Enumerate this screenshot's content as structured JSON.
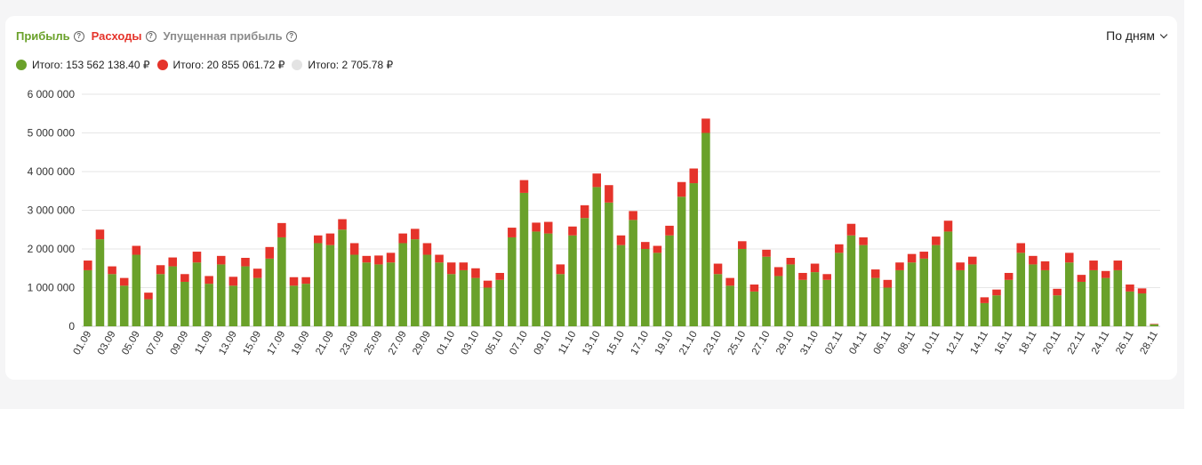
{
  "tabs": [
    {
      "label": "Прибыль",
      "color": "#6aa12a"
    },
    {
      "label": "Расходы",
      "color": "#e5332a"
    },
    {
      "label": "Упущенная прибыль",
      "color": "#8c8c8c"
    }
  ],
  "period_label": "По дням",
  "legend": [
    {
      "label": "Итого: 153 562 138.40 ₽",
      "color": "#6aa12a"
    },
    {
      "label": "Итого: 20 855 061.72 ₽",
      "color": "#e5332a"
    },
    {
      "label": "Итого: 2 705.78 ₽",
      "color": "#e3e3e3"
    }
  ],
  "chart_data": {
    "type": "bar",
    "stacked": true,
    "ylim": [
      0,
      6000000
    ],
    "yticks": [
      0,
      1000000,
      2000000,
      3000000,
      4000000,
      5000000,
      6000000
    ],
    "ytick_labels": [
      "0",
      "1 000 000",
      "2 000 000",
      "3 000 000",
      "4 000 000",
      "5 000 000",
      "6 000 000"
    ],
    "categories": [
      "01.09",
      "02.09",
      "03.09",
      "04.09",
      "05.09",
      "06.09",
      "07.09",
      "08.09",
      "09.09",
      "10.09",
      "11.09",
      "12.09",
      "13.09",
      "14.09",
      "15.09",
      "16.09",
      "17.09",
      "18.09",
      "19.09",
      "20.09",
      "21.09",
      "22.09",
      "23.09",
      "24.09",
      "25.09",
      "26.09",
      "27.09",
      "28.09",
      "29.09",
      "30.09",
      "01.10",
      "02.10",
      "03.10",
      "04.10",
      "05.10",
      "06.10",
      "07.10",
      "08.10",
      "09.10",
      "10.10",
      "11.10",
      "12.10",
      "13.10",
      "14.10",
      "15.10",
      "16.10",
      "17.10",
      "18.10",
      "19.10",
      "20.10",
      "21.10",
      "22.10",
      "23.10",
      "24.10",
      "25.10",
      "26.10",
      "27.10",
      "28.10",
      "29.10",
      "30.10",
      "31.10",
      "01.11",
      "02.11",
      "03.11",
      "04.11",
      "05.11",
      "06.11",
      "07.11",
      "08.11",
      "09.11",
      "10.11",
      "11.11",
      "12.11",
      "13.11",
      "14.11",
      "15.11",
      "16.11",
      "17.11",
      "18.11",
      "19.11",
      "20.11",
      "21.11",
      "22.11",
      "23.11",
      "24.11",
      "25.11",
      "26.11",
      "27.11",
      "28.11"
    ],
    "tick_labels": [
      "01.09",
      "03.09",
      "05.09",
      "07.09",
      "09.09",
      "11.09",
      "13.09",
      "15.09",
      "17.09",
      "19.09",
      "21.09",
      "23.09",
      "25.09",
      "27.09",
      "29.09",
      "01.10",
      "03.10",
      "05.10",
      "07.10",
      "09.10",
      "11.10",
      "13.10",
      "15.10",
      "17.10",
      "19.10",
      "21.10",
      "23.10",
      "25.10",
      "27.10",
      "29.10",
      "31.10",
      "02.11",
      "04.11",
      "06.11",
      "08.11",
      "10.11",
      "12.11",
      "14.11",
      "16.11",
      "18.11",
      "20.11",
      "22.11",
      "24.11",
      "26.11",
      "28.11"
    ],
    "series": [
      {
        "name": "Прибыль",
        "color": "#6aa12a",
        "values": [
          1450000,
          2250000,
          1350000,
          1050000,
          1850000,
          700000,
          1350000,
          1550000,
          1150000,
          1650000,
          1100000,
          1600000,
          1050000,
          1550000,
          1250000,
          1750000,
          2300000,
          1050000,
          1100000,
          2150000,
          2100000,
          2500000,
          1850000,
          1650000,
          1600000,
          1650000,
          2150000,
          2250000,
          1850000,
          1650000,
          1350000,
          1450000,
          1250000,
          1000000,
          1200000,
          2300000,
          3450000,
          2450000,
          2400000,
          1350000,
          2350000,
          2800000,
          3600000,
          3200000,
          2100000,
          2750000,
          2000000,
          1900000,
          2350000,
          3350000,
          3700000,
          5000000,
          1350000,
          1050000,
          2000000,
          900000,
          1800000,
          1300000,
          1600000,
          1200000,
          1400000,
          1200000,
          1900000,
          2350000,
          2100000,
          1250000,
          1000000,
          1450000,
          1650000,
          1750000,
          2100000,
          2450000,
          1450000,
          1600000,
          600000,
          800000,
          1200000,
          1900000,
          1600000,
          1450000,
          800000,
          1650000,
          1150000,
          1450000,
          1250000,
          1450000,
          900000,
          850000,
          50000
        ]
      },
      {
        "name": "Расходы",
        "color": "#e5332a",
        "values": [
          250000,
          250000,
          200000,
          200000,
          230000,
          170000,
          230000,
          230000,
          200000,
          280000,
          200000,
          220000,
          230000,
          220000,
          240000,
          300000,
          370000,
          220000,
          170000,
          200000,
          300000,
          270000,
          300000,
          170000,
          230000,
          250000,
          250000,
          270000,
          300000,
          200000,
          300000,
          200000,
          250000,
          180000,
          180000,
          250000,
          330000,
          230000,
          300000,
          250000,
          230000,
          330000,
          350000,
          450000,
          250000,
          230000,
          180000,
          180000,
          250000,
          380000,
          380000,
          370000,
          270000,
          200000,
          200000,
          180000,
          180000,
          230000,
          170000,
          180000,
          220000,
          150000,
          220000,
          300000,
          200000,
          220000,
          200000,
          200000,
          220000,
          180000,
          220000,
          280000,
          200000,
          200000,
          150000,
          150000,
          180000,
          250000,
          220000,
          230000,
          170000,
          250000,
          180000,
          250000,
          180000,
          250000,
          180000,
          130000,
          20000
        ]
      },
      {
        "name": "Упущенная прибыль",
        "color": "#e3e3e3",
        "values": [
          0,
          0,
          0,
          0,
          0,
          0,
          0,
          0,
          0,
          0,
          0,
          0,
          0,
          0,
          0,
          0,
          0,
          0,
          0,
          0,
          0,
          0,
          0,
          0,
          0,
          0,
          0,
          0,
          0,
          0,
          0,
          0,
          0,
          0,
          0,
          0,
          0,
          0,
          0,
          0,
          0,
          0,
          0,
          0,
          0,
          0,
          0,
          0,
          0,
          0,
          0,
          0,
          0,
          0,
          0,
          0,
          0,
          0,
          0,
          0,
          0,
          0,
          0,
          0,
          0,
          0,
          0,
          0,
          0,
          0,
          0,
          0,
          0,
          0,
          0,
          0,
          0,
          0,
          0,
          0,
          0,
          0,
          0,
          0,
          0,
          0,
          0,
          0,
          2706
        ]
      }
    ]
  }
}
